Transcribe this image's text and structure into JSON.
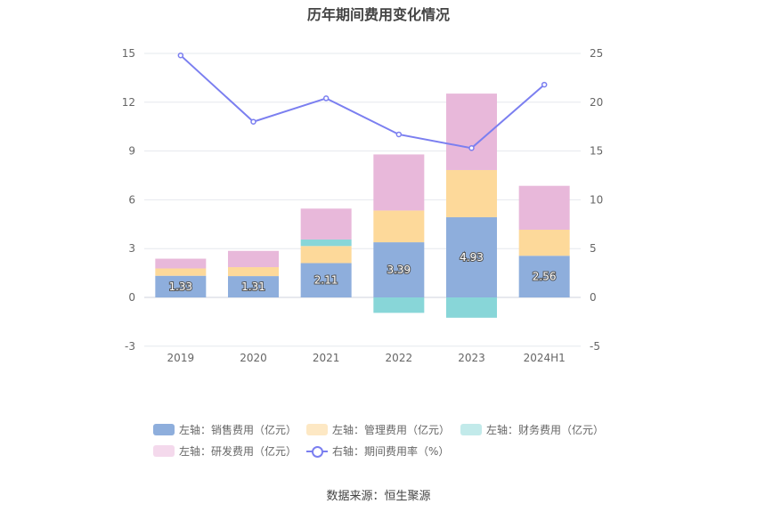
{
  "chart_data": {
    "type": "bar",
    "title": "历年期间费用变化情况",
    "categories": [
      "2019",
      "2020",
      "2021",
      "2022",
      "2023",
      "2024H1"
    ],
    "left_axis": {
      "ylim": [
        -3,
        15
      ],
      "ticks": [
        -3,
        0,
        3,
        6,
        9,
        12,
        15
      ]
    },
    "right_axis": {
      "ylim": [
        -5,
        25
      ],
      "ticks": [
        -5,
        0,
        5,
        10,
        15,
        20,
        25
      ]
    },
    "series": [
      {
        "name": "左轴：销售费用（亿元）",
        "color": "#8eaedc",
        "axis": "left",
        "values": [
          1.33,
          1.31,
          2.11,
          3.39,
          4.93,
          2.56
        ],
        "data_labels": [
          "1.33",
          "1.31",
          "2.11",
          "3.39",
          "4.93",
          "2.56"
        ]
      },
      {
        "name": "左轴：管理费用（亿元）",
        "color": "#fdd99a",
        "axis": "left",
        "values": [
          0.45,
          0.55,
          1.05,
          1.95,
          2.9,
          1.6
        ]
      },
      {
        "name": "左轴：财务费用（亿元）",
        "color": "#88d6d8",
        "axis": "left",
        "values": [
          0.0,
          0.0,
          0.4,
          -0.95,
          -1.25,
          0.0
        ]
      },
      {
        "name": "左轴：研发费用（亿元）",
        "color": "#e8b8da",
        "axis": "left",
        "values": [
          0.6,
          1.0,
          1.9,
          3.45,
          4.7,
          2.7
        ]
      },
      {
        "name": "右轴：期间费用率（%）",
        "color": "#7b7ff0",
        "axis": "right",
        "type": "line",
        "values": [
          24.8,
          18.0,
          20.4,
          16.7,
          15.3,
          21.8
        ]
      }
    ],
    "legend_position": "bottom",
    "grid": true
  },
  "source": "数据来源：恒生聚源"
}
